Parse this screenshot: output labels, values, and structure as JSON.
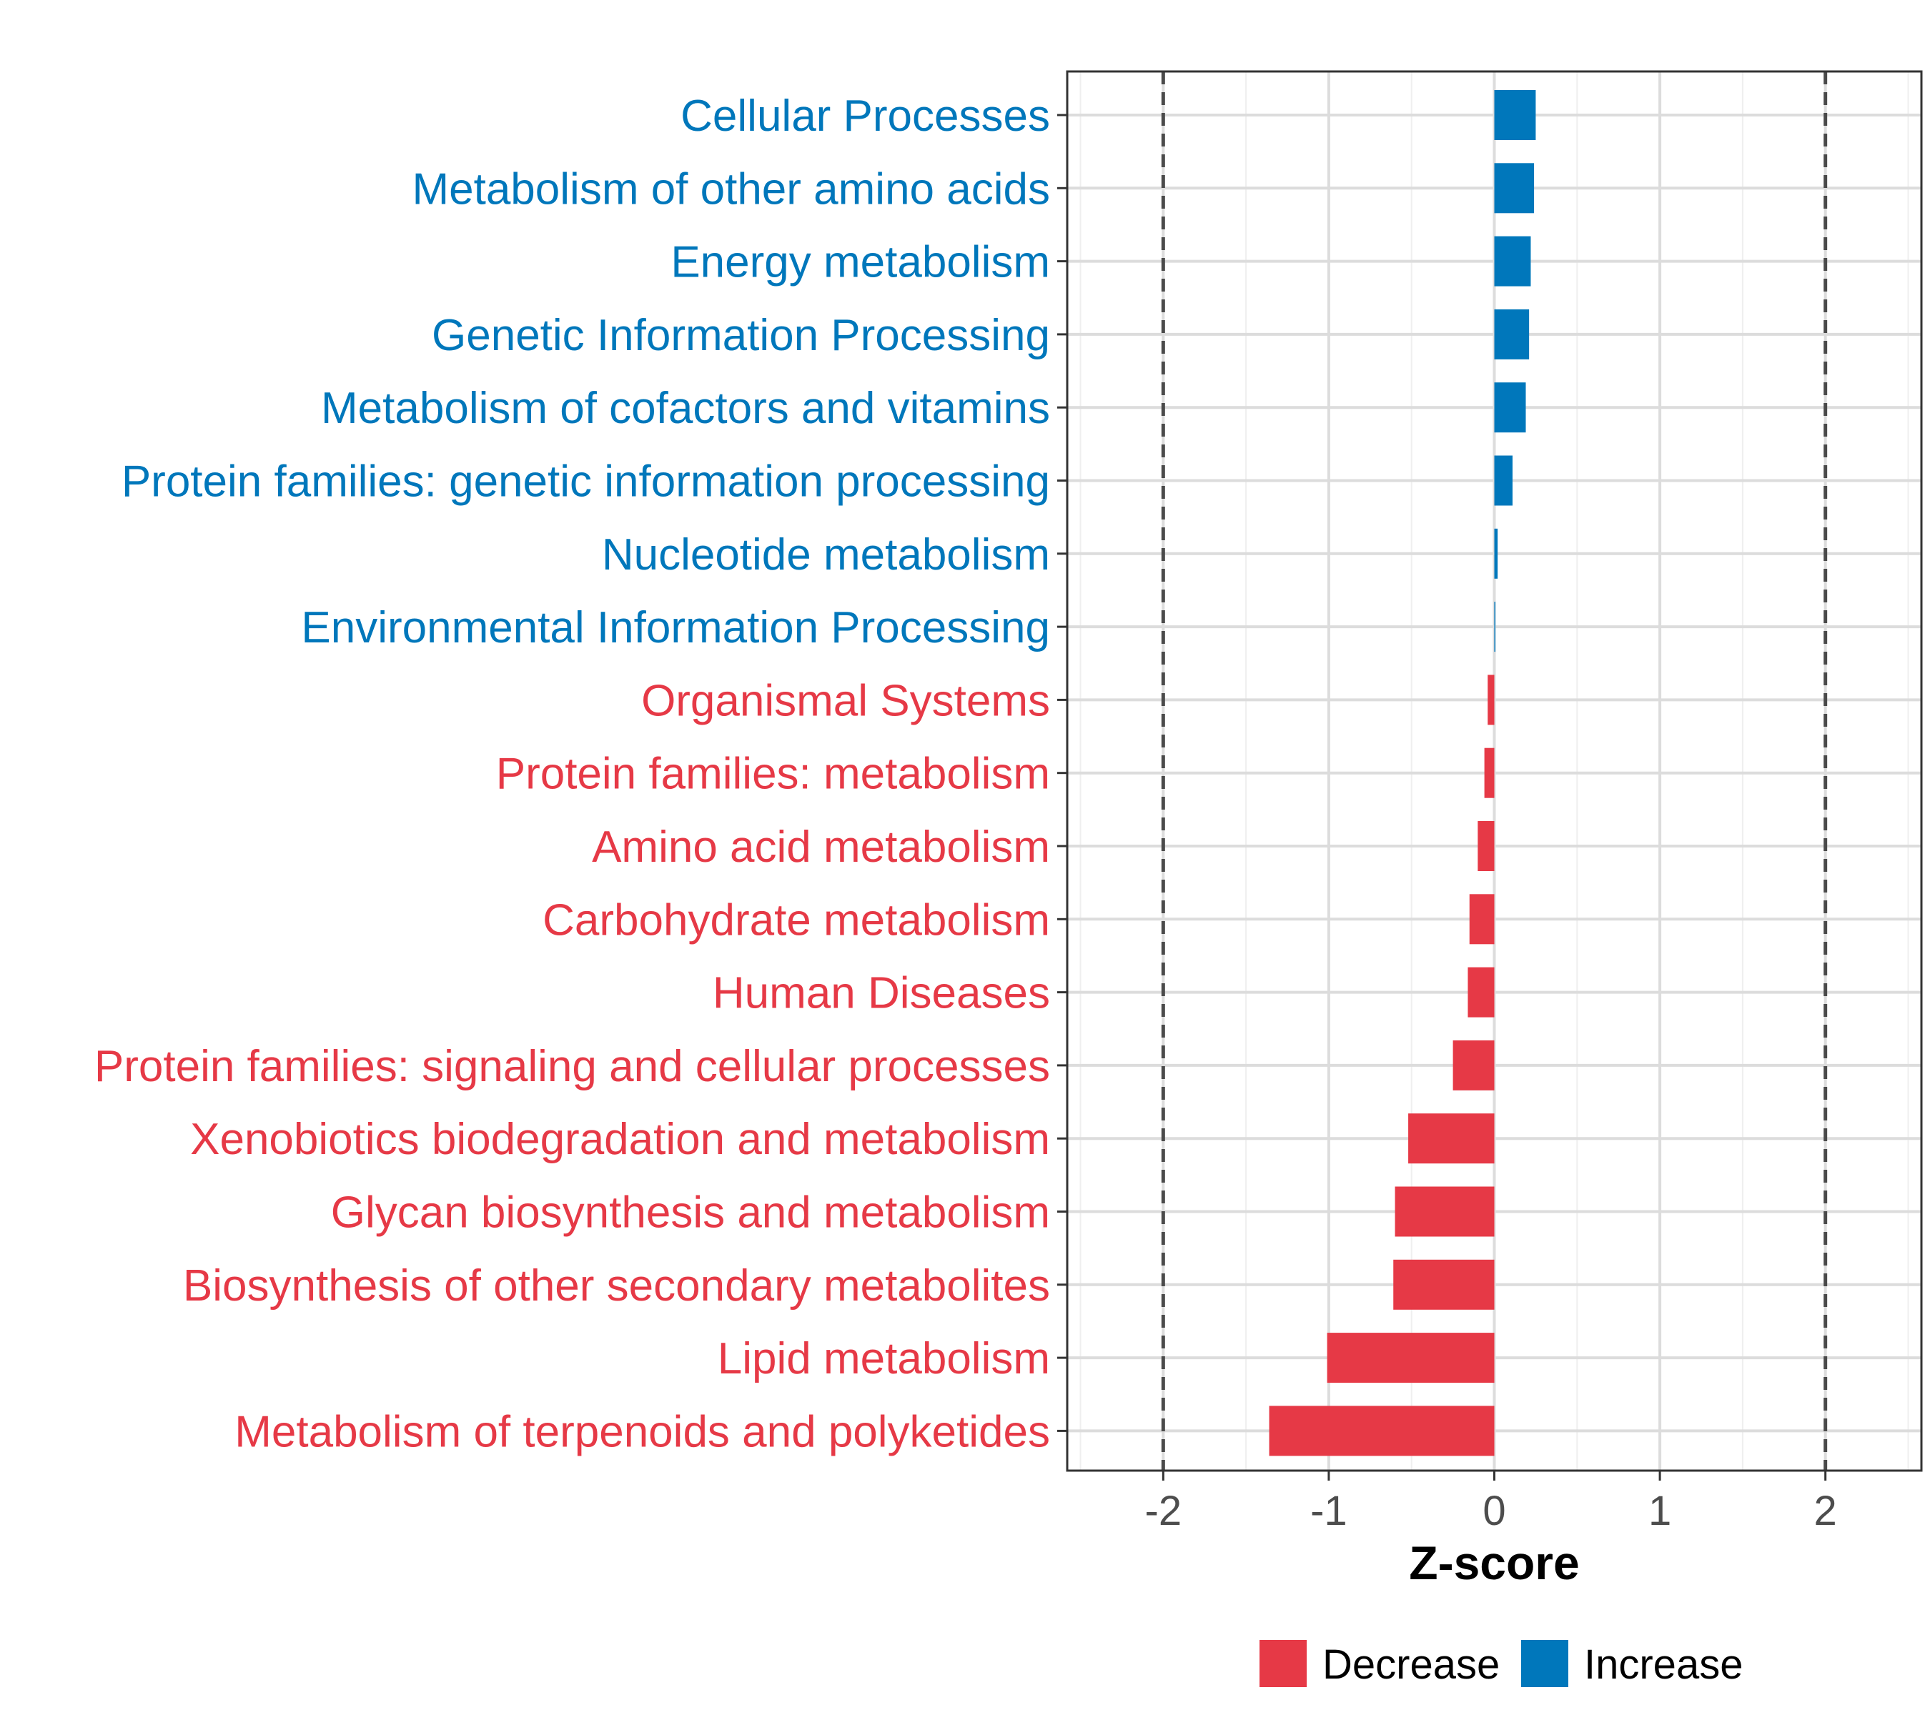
{
  "chart_data": {
    "type": "bar",
    "orientation": "horizontal",
    "title": "",
    "xlabel": "Z-score",
    "ylabel": "",
    "xlim": [
      -2.58,
      2.58
    ],
    "x_ticks": [
      -2,
      -1,
      0,
      1,
      2
    ],
    "x_tick_labels": [
      "-2",
      "-1",
      "0",
      "1",
      "2"
    ],
    "reference_lines": [
      -2,
      2
    ],
    "grid": true,
    "legend_position": "bottom",
    "colors": {
      "Decrease": "#e63946",
      "Increase": "#0077bb"
    },
    "legend": [
      {
        "name": "Decrease",
        "color": "#e63946"
      },
      {
        "name": "Increase",
        "color": "#0077bb"
      }
    ],
    "categories": [
      "Cellular Processes",
      "Metabolism of other amino acids",
      "Energy metabolism",
      "Genetic Information Processing",
      "Metabolism of cofactors and vitamins",
      "Protein families: genetic information processing",
      "Nucleotide metabolism",
      "Environmental Information Processing",
      "Organismal Systems",
      "Protein families: metabolism",
      "Amino acid metabolism",
      "Carbohydrate metabolism",
      "Human Diseases",
      "Protein families: signaling and cellular processes",
      "Xenobiotics biodegradation and metabolism",
      "Glycan biosynthesis and metabolism",
      "Biosynthesis of other secondary metabolites",
      "Lipid metabolism",
      "Metabolism of terpenoids and polyketides"
    ],
    "values": [
      0.25,
      0.24,
      0.22,
      0.21,
      0.19,
      0.11,
      0.02,
      0.005,
      -0.04,
      -0.06,
      -0.1,
      -0.15,
      -0.16,
      -0.25,
      -0.52,
      -0.6,
      -0.61,
      -1.01,
      -1.36
    ],
    "groups": [
      "Increase",
      "Increase",
      "Increase",
      "Increase",
      "Increase",
      "Increase",
      "Increase",
      "Increase",
      "Decrease",
      "Decrease",
      "Decrease",
      "Decrease",
      "Decrease",
      "Decrease",
      "Decrease",
      "Decrease",
      "Decrease",
      "Decrease",
      "Decrease"
    ]
  }
}
